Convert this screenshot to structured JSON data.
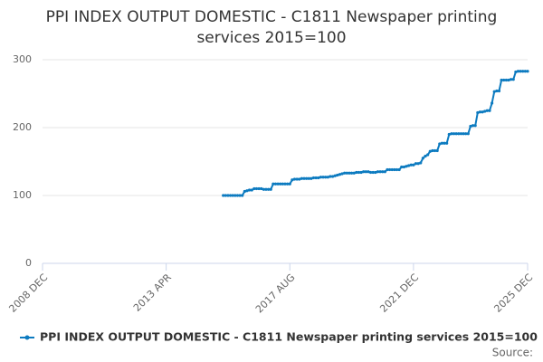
{
  "chart_data": {
    "type": "line",
    "title": "PPI INDEX OUTPUT DOMESTIC - C1811 Newspaper printing services 2015=100",
    "source": "Source:",
    "categories": [
      "2008 DEC",
      null,
      null,
      null,
      null,
      null,
      null,
      null,
      null,
      null,
      null,
      null,
      null,
      null,
      null,
      null,
      null,
      null,
      null,
      null,
      null,
      null,
      null,
      null,
      null,
      null,
      null,
      null,
      null,
      null,
      null,
      null,
      null,
      null,
      null,
      null,
      null,
      null,
      null,
      null,
      null,
      null,
      null,
      null,
      null,
      null,
      null,
      null,
      null,
      null,
      null,
      null,
      "2013 APR",
      null,
      null,
      null,
      null,
      null,
      null,
      null,
      null,
      null,
      null,
      null,
      null,
      null,
      null,
      null,
      null,
      null,
      null,
      null,
      null,
      null,
      null,
      null,
      null,
      null,
      null,
      null,
      null,
      null,
      null,
      null,
      null,
      null,
      null,
      null,
      null,
      null,
      null,
      null,
      null,
      null,
      null,
      null,
      null,
      null,
      null,
      null,
      null,
      null,
      null,
      null,
      "2017 AUG",
      null,
      null,
      null,
      null,
      null,
      null,
      null,
      null,
      null,
      null,
      null,
      null,
      null,
      null,
      null,
      null,
      null,
      null,
      null,
      null,
      null,
      null,
      null,
      null,
      null,
      null,
      null,
      null,
      null,
      null,
      null,
      null,
      null,
      null,
      null,
      null,
      null,
      null,
      null,
      null,
      null,
      null,
      null,
      null,
      null,
      null,
      null,
      null,
      null,
      null,
      null,
      "2021 DEC",
      null,
      null,
      null,
      null,
      null,
      null,
      null,
      null,
      null,
      null,
      null,
      null,
      null,
      null,
      null,
      null,
      null,
      null,
      null,
      null,
      null,
      null,
      null,
      null,
      null,
      null,
      null,
      null,
      null,
      null,
      null,
      null,
      null,
      null,
      null,
      null,
      null,
      null,
      null,
      null,
      null,
      null,
      null,
      null,
      null,
      null,
      null,
      "2025 DEC"
    ],
    "series": [
      {
        "name": "PPI INDEX OUTPUT DOMESTIC - C1811 Newspaper printing services 2015=100",
        "color": "#0d7bc0",
        "values": [
          null,
          null,
          null,
          null,
          null,
          null,
          null,
          null,
          null,
          null,
          null,
          null,
          null,
          null,
          null,
          null,
          null,
          null,
          null,
          null,
          null,
          null,
          null,
          null,
          null,
          null,
          null,
          null,
          null,
          null,
          null,
          null,
          null,
          null,
          null,
          null,
          null,
          null,
          null,
          null,
          null,
          null,
          null,
          null,
          null,
          null,
          null,
          null,
          null,
          null,
          null,
          null,
          null,
          null,
          null,
          null,
          null,
          null,
          null,
          null,
          null,
          null,
          null,
          null,
          null,
          null,
          null,
          null,
          null,
          null,
          null,
          null,
          null,
          null,
          null,
          null,
          100,
          100,
          100,
          100,
          100,
          100,
          100,
          100,
          100,
          106,
          107,
          108,
          108,
          110,
          110,
          110,
          110,
          109,
          109,
          109,
          109,
          117,
          117,
          117,
          117,
          117,
          117,
          117,
          117,
          123,
          124,
          124,
          124,
          125,
          125,
          125,
          125,
          125,
          126,
          126,
          126,
          127,
          127,
          127,
          127,
          128,
          128,
          129,
          130,
          131,
          132,
          133,
          133,
          133,
          133,
          133,
          134,
          134,
          134,
          135,
          135,
          135,
          134,
          134,
          134,
          135,
          135,
          135,
          135,
          138,
          138,
          138,
          138,
          138,
          138,
          142,
          142,
          143,
          144,
          145,
          145,
          147,
          147,
          148,
          155,
          158,
          160,
          165,
          166,
          166,
          166,
          176,
          177,
          177,
          177,
          190,
          191,
          191,
          191,
          191,
          191,
          191,
          191,
          191,
          202,
          203,
          203,
          222,
          223,
          223,
          224,
          225,
          225,
          236,
          253,
          254,
          254,
          270,
          270,
          270,
          270,
          271,
          271,
          282,
          283,
          283,
          283,
          283,
          283
        ]
      }
    ],
    "ylim": [
      0,
      310
    ],
    "yticks": [
      0,
      100,
      200,
      300
    ],
    "grid": true
  }
}
